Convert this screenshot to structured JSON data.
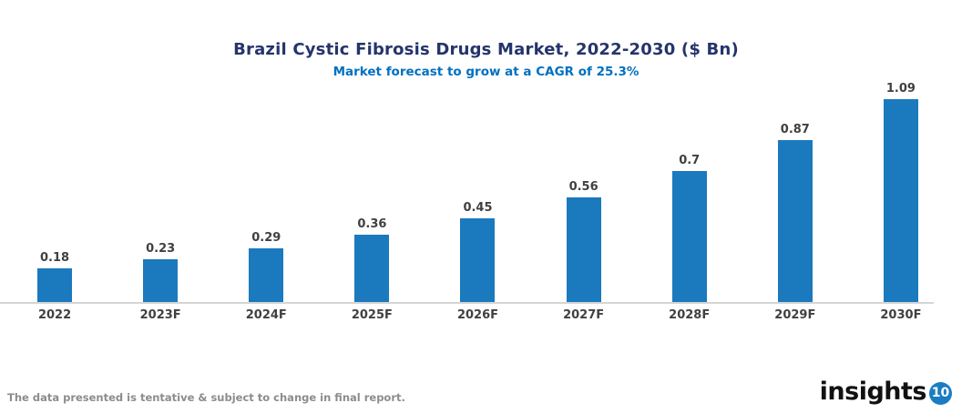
{
  "header": {
    "title": "Brazil Cystic Fibrosis Drugs Market, 2022-2030 ($ Bn)",
    "subtitle": "Market forecast to grow at a CAGR of 25.3%"
  },
  "chart_data": {
    "type": "bar",
    "title": "Brazil Cystic Fibrosis Drugs Market, 2022-2030 ($ Bn)",
    "subtitle": "Market forecast to grow at a CAGR of 25.3%",
    "categories": [
      "2022",
      "2023F",
      "2024F",
      "2025F",
      "2026F",
      "2027F",
      "2028F",
      "2029F",
      "2030F"
    ],
    "values": [
      0.18,
      0.23,
      0.29,
      0.36,
      0.45,
      0.56,
      0.7,
      0.87,
      1.09
    ],
    "value_labels": [
      "0.18",
      "0.23",
      "0.29",
      "0.36",
      "0.45",
      "0.56",
      "0.7",
      "0.87",
      "1.09"
    ],
    "xlabel": "",
    "ylabel": "",
    "ylim": [
      0,
      1.2
    ],
    "grid": false,
    "legend": false,
    "bar_color": "#1B79BE",
    "axis_line_color": "#D5D5D5",
    "label_color": "#404040"
  },
  "colors": {
    "title": "#24356B",
    "subtitle": "#0070C0",
    "bar": "#1B79BE",
    "footnote": "#8C8C8C",
    "logo_text": "#111111",
    "logo_badge": "#1A7DC2"
  },
  "footer": {
    "note": "The data presented is tentative & subject to change in final report.",
    "logo_text": "insights",
    "logo_number": "10"
  }
}
